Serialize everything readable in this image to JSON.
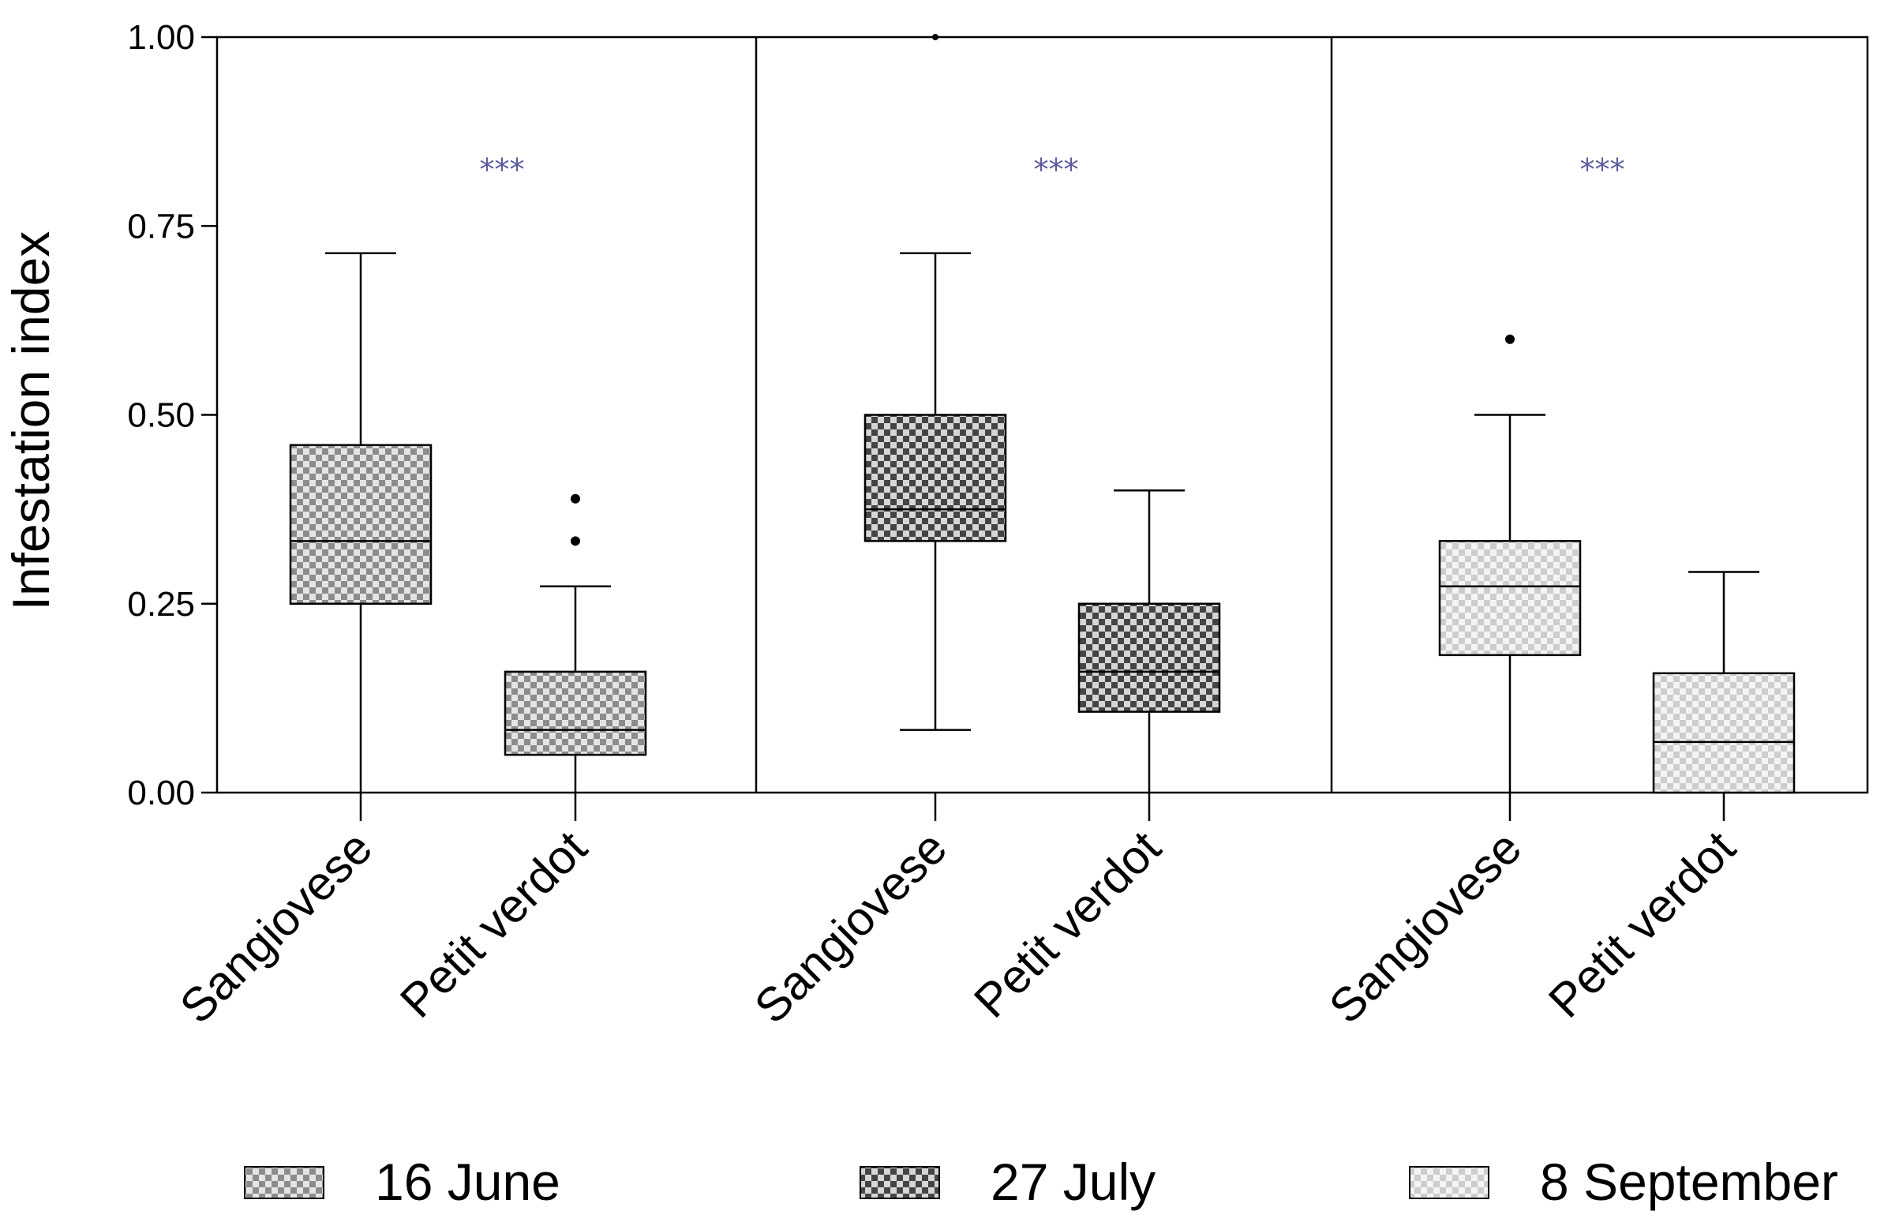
{
  "chart_data": {
    "type": "boxplot",
    "ylabel": "Infestation index",
    "ylim": [
      0,
      1
    ],
    "yticks": [
      "0.00",
      "0.25",
      "0.50",
      "0.75",
      "1.00"
    ],
    "ytick_values": [
      0,
      0.25,
      0.5,
      0.75,
      1.0
    ],
    "significance_color": "#5a5a9e",
    "groups": [
      {
        "date": "16 June",
        "significance": "***",
        "boxes": [
          {
            "category": "Sangiovese",
            "whisker_low": 0.0,
            "q1": 0.25,
            "median": 0.333,
            "q3": 0.46,
            "whisker_high": 0.714,
            "outliers": []
          },
          {
            "category": "Petit verdot",
            "whisker_low": 0.0,
            "q1": 0.05,
            "median": 0.083,
            "q3": 0.16,
            "whisker_high": 0.273,
            "outliers": [
              0.333,
              0.389
            ]
          }
        ]
      },
      {
        "date": "27 July",
        "significance": "***",
        "boxes": [
          {
            "category": "Sangiovese",
            "whisker_low": 0.083,
            "q1": 0.333,
            "median": 0.375,
            "q3": 0.5,
            "whisker_high": 0.714,
            "outliers": [
              1.0
            ]
          },
          {
            "category": "Petit verdot",
            "whisker_low": 0.0,
            "q1": 0.107,
            "median": 0.16,
            "q3": 0.25,
            "whisker_high": 0.4,
            "outliers": []
          }
        ]
      },
      {
        "date": "8 September",
        "significance": "***",
        "boxes": [
          {
            "category": "Sangiovese",
            "whisker_low": 0.0,
            "q1": 0.182,
            "median": 0.273,
            "q3": 0.333,
            "whisker_high": 0.5,
            "outliers": [
              0.6
            ]
          },
          {
            "category": "Petit verdot",
            "whisker_low": 0.0,
            "q1": 0.0,
            "median": 0.067,
            "q3": 0.158,
            "whisker_high": 0.292,
            "outliers": []
          }
        ]
      }
    ],
    "legend": [
      {
        "label": "16 June",
        "pattern": "pat-june"
      },
      {
        "label": "27 July",
        "pattern": "pat-july"
      },
      {
        "label": "8 September",
        "pattern": "pat-sept"
      }
    ]
  }
}
